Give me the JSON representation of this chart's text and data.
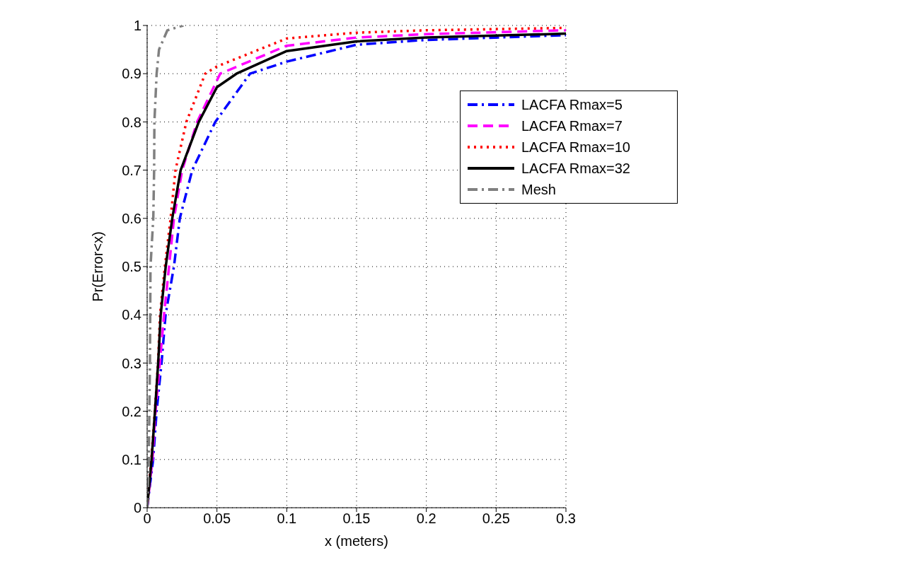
{
  "chart_data": {
    "type": "line",
    "xlabel": "x (meters)",
    "ylabel": "Pr(Error<x)",
    "xlim": [
      0,
      0.3
    ],
    "xticks": [
      0,
      0.05,
      0.1,
      0.15,
      0.2,
      0.25,
      0.3
    ],
    "ylim": [
      0,
      1
    ],
    "yticks": [
      0,
      0.1,
      0.2,
      0.3,
      0.4,
      0.5,
      0.6,
      0.7,
      0.8,
      0.9,
      1
    ],
    "grid": true,
    "legend": "top right",
    "marker": "none",
    "series": [
      {
        "name": "LACFA Rmax=5",
        "color": "#0000ff",
        "line_style": "dashdot",
        "x": [
          0,
          0.0043,
          0.0068,
          0.0103,
          0.0132,
          0.0192,
          0.0234,
          0.0323,
          0.0488,
          0.0737,
          0.1,
          0.15,
          0.2,
          0.3
        ],
        "values": [
          0,
          0.1,
          0.2,
          0.3,
          0.4,
          0.5,
          0.6,
          0.7,
          0.8,
          0.9,
          0.925,
          0.96,
          0.97,
          0.98
        ]
      },
      {
        "name": "LACFA Rmax=7",
        "color": "#ff00ff",
        "line_style": "dashed",
        "x": [
          0,
          0.0038,
          0.006,
          0.0091,
          0.0121,
          0.0157,
          0.0192,
          0.0251,
          0.0358,
          0.0523,
          0.1,
          0.15,
          0.2,
          0.3
        ],
        "values": [
          0,
          0.1,
          0.2,
          0.3,
          0.4,
          0.5,
          0.6,
          0.7,
          0.8,
          0.9,
          0.958,
          0.975,
          0.982,
          0.99
        ]
      },
      {
        "name": "LACFA Rmax=10",
        "color": "#ff0000",
        "line_style": "dotted",
        "x": [
          0,
          0.003,
          0.0055,
          0.0078,
          0.0092,
          0.0127,
          0.0168,
          0.0203,
          0.0281,
          0.0416,
          0.05,
          0.1,
          0.15,
          0.2,
          0.3
        ],
        "values": [
          0,
          0.1,
          0.2,
          0.3,
          0.4,
          0.5,
          0.6,
          0.7,
          0.8,
          0.9,
          0.915,
          0.973,
          0.985,
          0.99,
          0.995
        ]
      },
      {
        "name": "LACFA Rmax=32",
        "color": "#000000",
        "line_style": "solid",
        "x": [
          0,
          0.0032,
          0.0056,
          0.0079,
          0.0097,
          0.0133,
          0.018,
          0.024,
          0.037,
          0.05,
          0.064,
          0.1,
          0.15,
          0.2,
          0.3
        ],
        "values": [
          0,
          0.1,
          0.2,
          0.3,
          0.4,
          0.5,
          0.6,
          0.7,
          0.8,
          0.872,
          0.9,
          0.947,
          0.967,
          0.975,
          0.983
        ]
      },
      {
        "name": "Mesh",
        "color": "#808080",
        "line_style": "dashdot",
        "x": [
          0,
          0.0012,
          0.002,
          0.0022,
          0.0024,
          0.0044,
          0.005,
          0.0052,
          0.0068,
          0.0085,
          0.0145,
          0.026
        ],
        "values": [
          0,
          0.1,
          0.3,
          0.4,
          0.5,
          0.6,
          0.7,
          0.8,
          0.9,
          0.95,
          0.99,
          1
        ]
      }
    ]
  }
}
